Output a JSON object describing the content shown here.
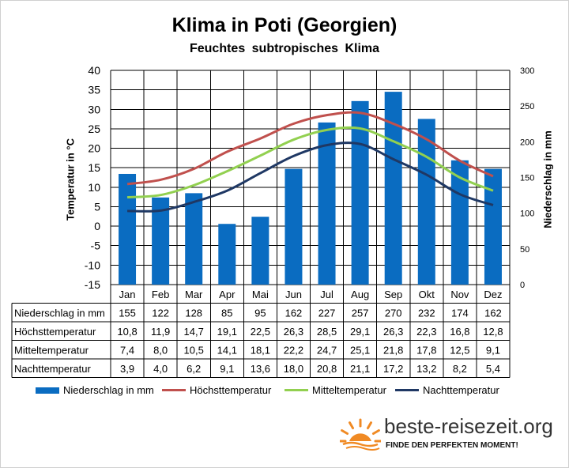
{
  "title": "Klima in Poti (Georgien)",
  "subtitle": "Feuchtes subtropisches Klima",
  "chart_data": {
    "type": "bar",
    "categories": [
      "Jan",
      "Feb",
      "Mar",
      "Apr",
      "Mai",
      "Jun",
      "Jul",
      "Aug",
      "Sep",
      "Okt",
      "Nov",
      "Dez"
    ],
    "y_left": {
      "label": "Temperatur in °C",
      "ylim": [
        -15,
        40
      ],
      "ticks": [
        -15,
        -10,
        -5,
        0,
        5,
        10,
        15,
        20,
        25,
        30,
        35,
        40
      ]
    },
    "y_right": {
      "label": "Niederschlag in mm",
      "ylim": [
        0,
        300
      ],
      "ticks": [
        0,
        50,
        100,
        150,
        200,
        250,
        300
      ]
    },
    "grid": true,
    "legend_position": "bottom",
    "series": [
      {
        "name": "Niederschlag in mm",
        "kind": "bar",
        "axis": "right",
        "color": "#0a6cc1",
        "values": [
          155,
          122,
          128,
          85,
          95,
          162,
          227,
          257,
          270,
          232,
          174,
          162
        ],
        "display": [
          "155",
          "122",
          "128",
          "85",
          "95",
          "162",
          "227",
          "257",
          "270",
          "232",
          "174",
          "162"
        ]
      },
      {
        "name": "Höchsttemperatur",
        "kind": "line",
        "axis": "left",
        "color": "#c0504d",
        "values": [
          10.8,
          11.9,
          14.7,
          19.1,
          22.5,
          26.3,
          28.5,
          29.1,
          26.3,
          22.3,
          16.8,
          12.8
        ],
        "display": [
          "10,8",
          "11,9",
          "14,7",
          "19,1",
          "22,5",
          "26,3",
          "28,5",
          "29,1",
          "26,3",
          "22,3",
          "16,8",
          "12,8"
        ]
      },
      {
        "name": "Mitteltemperatur",
        "kind": "line",
        "axis": "left",
        "color": "#92d050",
        "values": [
          7.4,
          8.0,
          10.5,
          14.1,
          18.1,
          22.2,
          24.7,
          25.1,
          21.8,
          17.8,
          12.5,
          9.1
        ],
        "display": [
          "7,4",
          "8,0",
          "10,5",
          "14,1",
          "18,1",
          "22,2",
          "24,7",
          "25,1",
          "21,8",
          "17,8",
          "12,5",
          "9,1"
        ]
      },
      {
        "name": "Nachttemperatur",
        "kind": "line",
        "axis": "left",
        "color": "#1f3864",
        "values": [
          3.9,
          4.0,
          6.2,
          9.1,
          13.6,
          18.0,
          20.8,
          21.1,
          17.2,
          13.2,
          8.2,
          5.4
        ],
        "display": [
          "3,9",
          "4,0",
          "6,2",
          "9,1",
          "13,6",
          "18,0",
          "20,8",
          "21,1",
          "17,2",
          "13,2",
          "8,2",
          "5,4"
        ]
      }
    ]
  },
  "brand": {
    "name": "beste-reisezeit.org",
    "tagline": "FINDE DEN PERFEKTEN MOMENT!",
    "icon": "sun-icon",
    "icon_color": "#f08a24"
  }
}
